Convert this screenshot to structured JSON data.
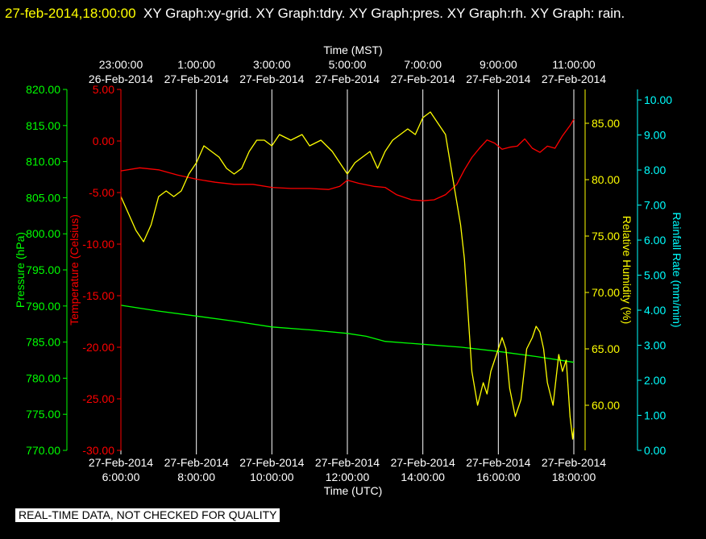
{
  "header": {
    "timestamp": "27-feb-2014,18:00:00",
    "graphs": "XY Graph:xy-grid.  XY Graph:tdry.  XY Graph:pres.  XY Graph:rh.  XY Graph: rain."
  },
  "disclaimer": "REAL-TIME DATA, NOT CHECKED FOR QUALITY",
  "colors": {
    "background": "#000000",
    "temperature": "#ff0000",
    "pressure": "#00ff00",
    "humidity": "#ffff00",
    "rainfall": "#00ffff",
    "grid": "#ffffff"
  },
  "chart_data": {
    "type": "line",
    "grid": "vertical",
    "x_top_label": "Time (MST)",
    "x_bottom_label": "Time (UTC)",
    "x_top_ticks": [
      [
        "23:00:00",
        "26-Feb-2014"
      ],
      [
        "1:00:00",
        "27-Feb-2014"
      ],
      [
        "3:00:00",
        "27-Feb-2014"
      ],
      [
        "5:00:00",
        "27-Feb-2014"
      ],
      [
        "7:00:00",
        "27-Feb-2014"
      ],
      [
        "9:00:00",
        "27-Feb-2014"
      ],
      [
        "11:00:00",
        "27-Feb-2014"
      ]
    ],
    "x_bottom_ticks": [
      [
        "27-Feb-2014",
        "6:00:00"
      ],
      [
        "27-Feb-2014",
        "8:00:00"
      ],
      [
        "27-Feb-2014",
        "10:00:00"
      ],
      [
        "27-Feb-2014",
        "12:00:00"
      ],
      [
        "27-Feb-2014",
        "14:00:00"
      ],
      [
        "27-Feb-2014",
        "16:00:00"
      ],
      [
        "27-Feb-2014",
        "18:00:00"
      ]
    ],
    "x_hours": [
      6,
      8,
      10,
      12,
      14,
      16,
      18
    ],
    "xlim": [
      6,
      18
    ],
    "axes": {
      "pressure": {
        "label": "Pressure (hPa)",
        "ylim": [
          770,
          820
        ],
        "ticks": [
          "770.00",
          "775.00",
          "780.00",
          "785.00",
          "790.00",
          "795.00",
          "800.00",
          "805.00",
          "810.00",
          "815.00",
          "820.00"
        ]
      },
      "temperature": {
        "label": "Temperature (Celsius)",
        "ylim": [
          -30,
          5
        ],
        "ticks": [
          "-30.00",
          "-25.00",
          "-20.00",
          "-15.00",
          "-10.00",
          "-5.00",
          "0.00",
          "5.00"
        ]
      },
      "humidity": {
        "label": "Relative Humidity (%)",
        "ylim": [
          56,
          88
        ],
        "ticks": [
          "60.00",
          "65.00",
          "70.00",
          "75.00",
          "80.00",
          "85.00"
        ]
      },
      "rainfall": {
        "label": "Rainfall Rate (mm/min)",
        "ylim": [
          0,
          10.3
        ],
        "ticks": [
          "0.00",
          "1.00",
          "2.00",
          "3.00",
          "4.00",
          "5.00",
          "6.00",
          "7.00",
          "8.00",
          "9.00",
          "10.00"
        ]
      }
    },
    "series": [
      {
        "key": "temperature",
        "axis": "temperature",
        "x": [
          6.0,
          6.5,
          7.0,
          7.5,
          8.0,
          8.5,
          9.0,
          9.5,
          10.0,
          10.5,
          11.0,
          11.5,
          11.8,
          12.0,
          12.3,
          12.7,
          13.0,
          13.3,
          13.7,
          14.0,
          14.3,
          14.6,
          14.9,
          15.1,
          15.3,
          15.5,
          15.7,
          15.9,
          16.1,
          16.3,
          16.5,
          16.7,
          16.9,
          17.1,
          17.3,
          17.5,
          17.7,
          17.9,
          18.0
        ],
        "values": [
          -2.9,
          -2.6,
          -2.8,
          -3.3,
          -3.7,
          -4.0,
          -4.2,
          -4.2,
          -4.5,
          -4.6,
          -4.6,
          -4.7,
          -4.4,
          -3.8,
          -4.1,
          -4.4,
          -4.5,
          -5.2,
          -5.7,
          -5.8,
          -5.7,
          -5.2,
          -4.2,
          -2.8,
          -1.6,
          -0.7,
          0.1,
          -0.2,
          -0.8,
          -0.6,
          -0.5,
          0.2,
          -0.7,
          -1.1,
          -0.5,
          -0.7,
          0.5,
          1.5,
          2.1
        ]
      },
      {
        "key": "pressure",
        "axis": "pressure",
        "x": [
          6,
          7,
          8,
          9,
          10,
          11,
          12,
          12.5,
          13,
          14,
          15,
          16,
          17,
          18
        ],
        "values": [
          790.1,
          789.3,
          788.6,
          787.9,
          787.1,
          786.7,
          786.2,
          785.8,
          785.1,
          784.7,
          784.3,
          783.7,
          783.0,
          782.2
        ]
      },
      {
        "key": "humidity",
        "axis": "humidity",
        "x": [
          6.0,
          6.2,
          6.4,
          6.6,
          6.8,
          7.0,
          7.2,
          7.4,
          7.6,
          7.8,
          8.0,
          8.2,
          8.4,
          8.6,
          8.8,
          9.0,
          9.2,
          9.4,
          9.6,
          9.8,
          10.0,
          10.2,
          10.5,
          10.8,
          11.0,
          11.3,
          11.6,
          11.8,
          12.0,
          12.2,
          12.4,
          12.6,
          12.8,
          13.0,
          13.2,
          13.4,
          13.6,
          13.8,
          14.0,
          14.2,
          14.4,
          14.6,
          14.8,
          15.0,
          15.1,
          15.2,
          15.3,
          15.45,
          15.6,
          15.7,
          15.8,
          15.95,
          16.1,
          16.2,
          16.3,
          16.45,
          16.6,
          16.75,
          16.9,
          17.0,
          17.1,
          17.2,
          17.3,
          17.45,
          17.6,
          17.7,
          17.8,
          17.9,
          17.97,
          18.0
        ],
        "values": [
          78.5,
          77.0,
          75.5,
          74.5,
          76.0,
          78.5,
          79.0,
          78.5,
          79.0,
          80.5,
          81.5,
          83.0,
          82.5,
          82.0,
          81.0,
          80.5,
          81.0,
          82.5,
          83.5,
          83.5,
          83.0,
          84.0,
          83.5,
          84.0,
          83.0,
          83.5,
          82.5,
          81.5,
          80.5,
          81.5,
          82.0,
          82.5,
          81.0,
          82.5,
          83.5,
          84.0,
          84.5,
          84.0,
          85.5,
          86.0,
          85.0,
          84.0,
          80.0,
          76.0,
          73.0,
          68.0,
          63.0,
          60.0,
          62.0,
          61.0,
          63.0,
          64.5,
          66.0,
          65.0,
          61.5,
          59.0,
          60.5,
          65.0,
          66.0,
          67.0,
          66.5,
          65.0,
          62.0,
          60.0,
          64.5,
          63.0,
          64.0,
          59.0,
          57.0,
          58.0
        ]
      },
      {
        "key": "rainfall",
        "axis": "rainfall",
        "x": [],
        "values": []
      }
    ]
  }
}
